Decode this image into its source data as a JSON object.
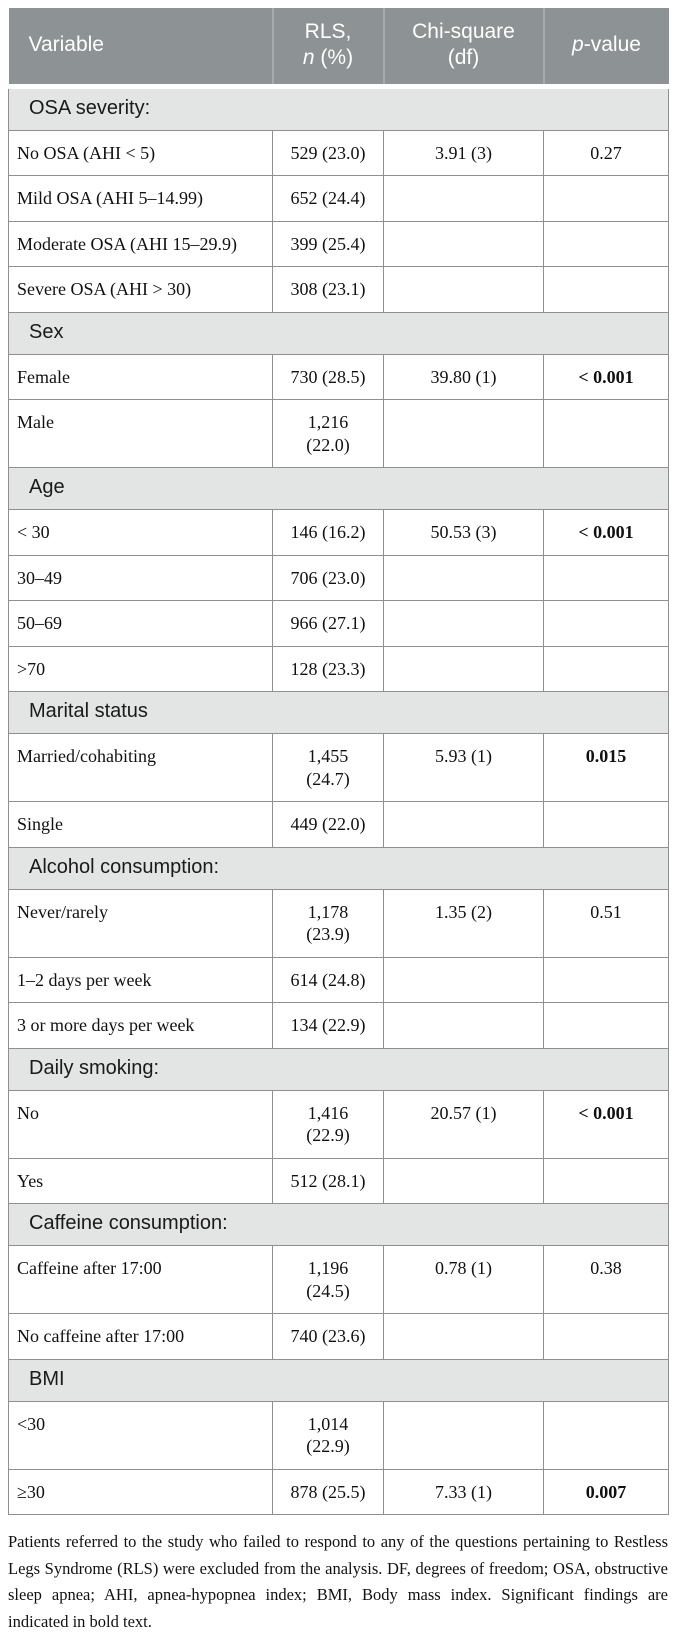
{
  "table": {
    "header": {
      "variable": "Variable",
      "rls_line1": "RLS,",
      "rls_line2_italic": "n",
      "rls_line2_rest": " (%)",
      "chi_line1": "Chi-square",
      "chi_line2": "(df)",
      "p_italic": "p",
      "p_rest": "-value"
    },
    "sections": [
      {
        "title": "OSA severity:",
        "rows": [
          {
            "variable": "No OSA (AHI < 5)",
            "rls": "529 (23.0)",
            "chi": "3.91 (3)",
            "p": "0.27",
            "p_bold": false
          },
          {
            "variable": "Mild OSA (AHI 5–14.99)",
            "rls": "652 (24.4)",
            "chi": "",
            "p": ""
          },
          {
            "variable": "Moderate OSA (AHI 15–29.9)",
            "rls": "399 (25.4)",
            "chi": "",
            "p": ""
          },
          {
            "variable": "Severe OSA (AHI > 30)",
            "rls": "308 (23.1)",
            "chi": "",
            "p": ""
          }
        ]
      },
      {
        "title": "Sex",
        "rows": [
          {
            "variable": "Female",
            "rls": "730 (28.5)",
            "chi": "39.80 (1)",
            "p": "< 0.001",
            "p_bold": true
          },
          {
            "variable": "Male",
            "rls": "1,216\n(22.0)",
            "chi": "",
            "p": ""
          }
        ]
      },
      {
        "title": "Age",
        "rows": [
          {
            "variable": "< 30",
            "rls": "146 (16.2)",
            "chi": "50.53 (3)",
            "p": "< 0.001",
            "p_bold": true
          },
          {
            "variable": "30–49",
            "rls": "706 (23.0)",
            "chi": "",
            "p": ""
          },
          {
            "variable": "50–69",
            "rls": "966 (27.1)",
            "chi": "",
            "p": ""
          },
          {
            "variable": ">70",
            "rls": "128 (23.3)",
            "chi": "",
            "p": ""
          }
        ]
      },
      {
        "title": "Marital status",
        "rows": [
          {
            "variable": "Married/cohabiting",
            "rls": "1,455\n(24.7)",
            "chi": "5.93 (1)",
            "p": "0.015",
            "p_bold": true
          },
          {
            "variable": "Single",
            "rls": "449 (22.0)",
            "chi": "",
            "p": ""
          }
        ]
      },
      {
        "title": "Alcohol consumption:",
        "rows": [
          {
            "variable": "Never/rarely",
            "rls": "1,178\n(23.9)",
            "chi": "1.35 (2)",
            "p": "0.51",
            "p_bold": false
          },
          {
            "variable": "1–2 days per week",
            "rls": "614 (24.8)",
            "chi": "",
            "p": ""
          },
          {
            "variable": "3 or more days per week",
            "rls": "134 (22.9)",
            "chi": "",
            "p": ""
          }
        ]
      },
      {
        "title": "Daily smoking:",
        "rows": [
          {
            "variable": "No",
            "rls": "1,416\n(22.9)",
            "chi": "20.57 (1)",
            "p": "< 0.001",
            "p_bold": true
          },
          {
            "variable": "Yes",
            "rls": "512 (28.1)",
            "chi": "",
            "p": ""
          }
        ]
      },
      {
        "title": "Caffeine consumption:",
        "rows": [
          {
            "variable": "Caffeine after 17:00",
            "rls": "1,196\n(24.5)",
            "chi": "0.78 (1)",
            "p": "0.38",
            "p_bold": false
          },
          {
            "variable": "No caffeine after 17:00",
            "rls": "740 (23.6)",
            "chi": "",
            "p": ""
          }
        ]
      },
      {
        "title": "BMI",
        "rows": [
          {
            "variable": "<30",
            "rls": "1,014\n(22.9)",
            "chi": "",
            "p": ""
          },
          {
            "variable": "≥30",
            "rls": "878 (25.5)",
            "chi": "7.33 (1)",
            "p": "0.007",
            "p_bold": true
          }
        ]
      }
    ]
  },
  "footnote": "Patients referred to the study who failed to respond to any of the questions pertaining to Restless Legs Syndrome (RLS) were excluded from the analysis. DF, degrees of freedom; OSA, obstructive sleep apnea; AHI, apnea-hypopnea index; BMI, Body mass index. Significant findings are indicated in bold text."
}
